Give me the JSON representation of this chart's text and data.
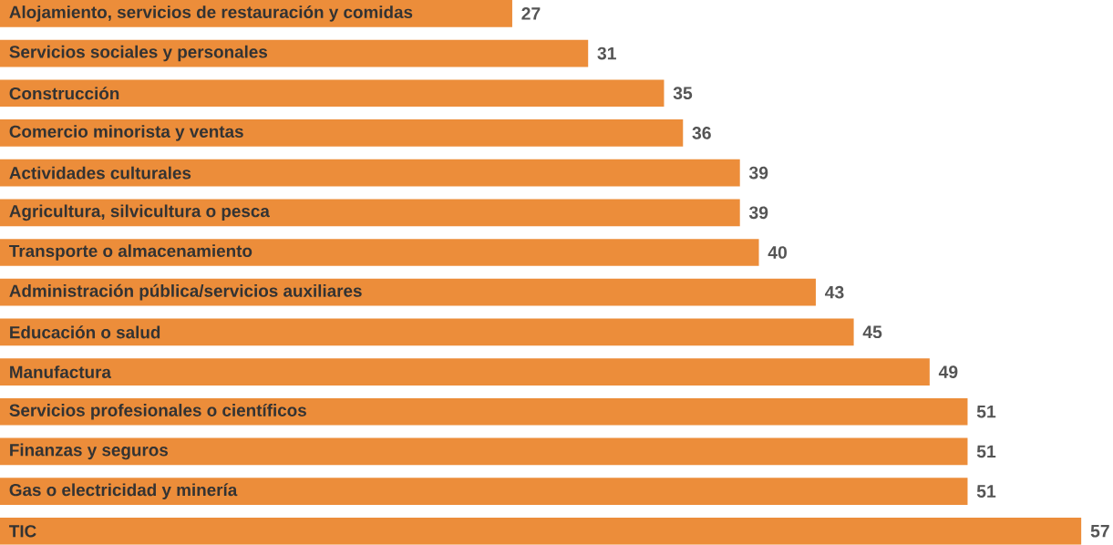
{
  "chart_data": {
    "type": "bar",
    "orientation": "horizontal",
    "categories": [
      "Alojamiento, servicios de restauración y comidas",
      "Servicios sociales y personales",
      "Construcción",
      "Comercio minorista y ventas",
      "Actividades culturales",
      "Agricultura, silvicultura o pesca",
      "Transporte o almacenamiento",
      "Administración pública/servicios auxiliares",
      "Educación o salud",
      "Manufactura",
      "Servicios profesionales o científicos",
      "Finanzas y seguros",
      "Gas o electricidad y minería",
      "TIC"
    ],
    "values": [
      27,
      31,
      35,
      36,
      39,
      39,
      40,
      43,
      45,
      49,
      51,
      51,
      51,
      57
    ],
    "color": "#ec8d3a",
    "data_labels": true
  }
}
